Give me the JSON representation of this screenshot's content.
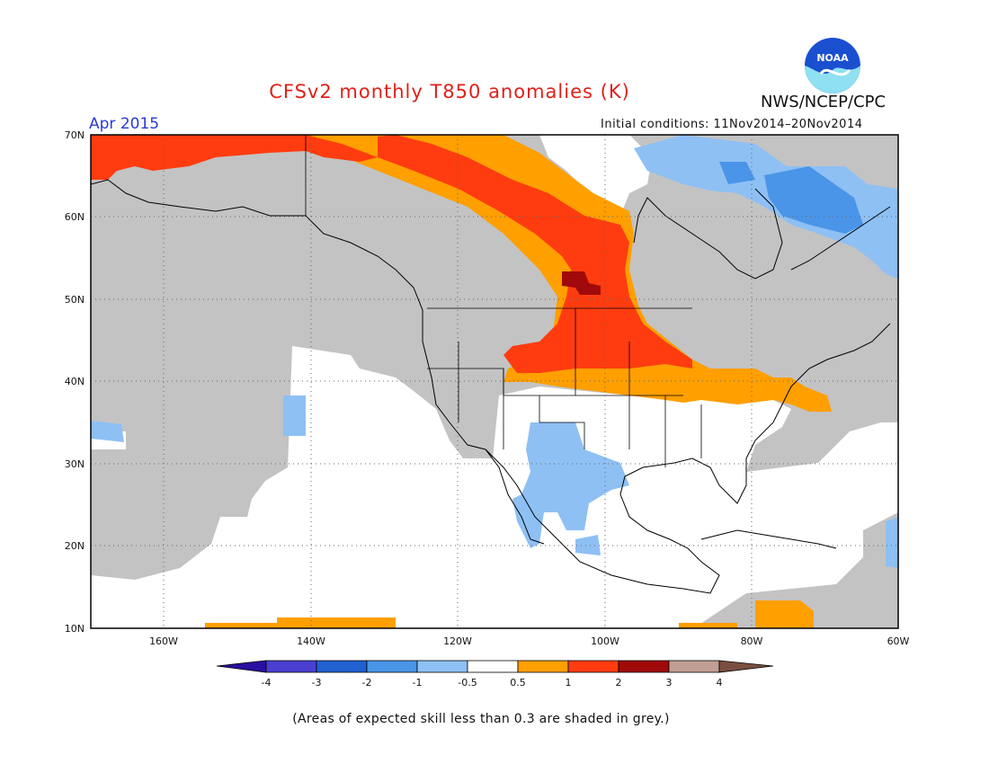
{
  "header": {
    "title": "CFSv2 monthly T850 anomalies (K)",
    "org": "NWS/NCEP/CPC",
    "logo_text": "NOAA",
    "period": "Apr 2015",
    "initial_conditions": "Initial conditions: 11Nov2014–20Nov2014"
  },
  "map": {
    "lon_range": [
      -170,
      -60
    ],
    "lat_range": [
      10,
      70
    ],
    "lat_labels": [
      "70N",
      "60N",
      "50N",
      "40N",
      "30N",
      "20N",
      "10N"
    ],
    "lon_labels": [
      "160W",
      "140W",
      "120W",
      "100W",
      "80W",
      "60W"
    ]
  },
  "colorbar": {
    "labels": [
      "-4",
      "-3",
      "-2",
      "-1",
      "-0.5",
      "0.5",
      "1",
      "2",
      "3",
      "4"
    ],
    "colors": [
      "#2a0fa0",
      "#4a3fd0",
      "#2060d0",
      "#4a95e8",
      "#8ec0f4",
      "#ffffff",
      "#ff9f00",
      "#ff3c10",
      "#a00a0a",
      "#c09f94",
      "#7a4f40"
    ]
  },
  "footnote": "(Areas of expected skill less than 0.3 are shaded in grey.)",
  "palette": {
    "grey": "#c3c3c3",
    "white": "#ffffff",
    "orange": "#ff9f00",
    "red": "#ff3c10",
    "darkred": "#a00a0a",
    "lightblue": "#8ec0f4",
    "blue": "#4a95e8"
  }
}
